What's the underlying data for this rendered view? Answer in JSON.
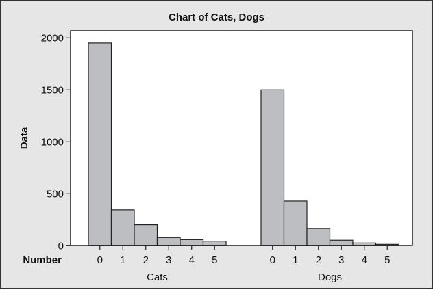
{
  "chart_data": {
    "type": "bar",
    "title": "Chart of Cats, Dogs",
    "ylabel": "Data",
    "xlabel": "Number",
    "ylim": [
      0,
      2050
    ],
    "yticks": [
      0,
      500,
      1000,
      1500,
      2000
    ],
    "grid": false,
    "categories": [
      "0",
      "1",
      "2",
      "3",
      "4",
      "5"
    ],
    "groups": [
      {
        "label": "Cats",
        "values": [
          1950,
          345,
          202,
          79,
          59,
          44
        ]
      },
      {
        "label": "Dogs",
        "values": [
          1500,
          430,
          166,
          53,
          26,
          13
        ]
      }
    ],
    "colors": {
      "bar": "#bdbec2",
      "background": "#e6e6e6",
      "plot": "#ffffff"
    }
  }
}
